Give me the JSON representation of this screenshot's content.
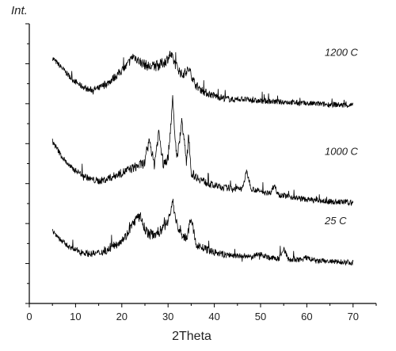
{
  "chart_data": {
    "type": "line",
    "title": "",
    "xlabel": "2Theta",
    "ylabel": "Int.",
    "xlim": [
      0,
      75
    ],
    "ylim": [
      0,
      35
    ],
    "x_ticks": [
      0,
      10,
      20,
      30,
      40,
      50,
      60,
      70
    ],
    "y_ticks_shown": false,
    "grid": false,
    "legend": "none",
    "colors": {
      "line": "#000000",
      "axis": "#000000",
      "text": "#222222"
    },
    "series": [
      {
        "name": "1200 C",
        "x": [
          5,
          7,
          9,
          11,
          13,
          15,
          17,
          19,
          21,
          22.5,
          24,
          26,
          28,
          29.5,
          30.5,
          31.5,
          33,
          34.5,
          36,
          38,
          40,
          42,
          44,
          46,
          48,
          50,
          52,
          54,
          56,
          58,
          60,
          62,
          64,
          66,
          68,
          70
        ],
        "y": [
          30.7,
          29.5,
          28.2,
          27.3,
          26.7,
          26.9,
          27.6,
          28.6,
          29.7,
          31.0,
          30.2,
          29.6,
          29.8,
          30.3,
          31.2,
          30.0,
          28.6,
          29.3,
          27.3,
          26.4,
          26.0,
          25.7,
          25.5,
          25.6,
          25.4,
          25.3,
          25.3,
          25.2,
          25.2,
          25.1,
          25.0,
          25.0,
          24.9,
          24.9,
          24.8,
          24.8
        ]
      },
      {
        "name": "1000 C",
        "x": [
          5,
          7,
          9,
          11,
          13,
          15,
          17,
          19,
          21,
          23,
          25,
          26,
          27,
          28,
          29,
          30,
          31,
          31.5,
          32,
          33,
          34,
          34.5,
          35,
          36,
          38,
          40,
          42,
          44,
          46,
          47,
          48,
          50,
          52,
          53,
          54,
          56,
          58,
          60,
          62,
          64,
          66,
          68,
          70
        ],
        "y": [
          20.3,
          18.4,
          17.0,
          16.3,
          15.6,
          15.3,
          15.6,
          16.1,
          16.6,
          17.1,
          17.6,
          20.5,
          17.3,
          21.5,
          17.3,
          18.2,
          25.5,
          20.5,
          18.2,
          23.0,
          17.5,
          21.0,
          16.3,
          15.9,
          15.2,
          14.7,
          14.5,
          14.4,
          14.3,
          16.5,
          14.4,
          14.0,
          13.8,
          14.8,
          13.6,
          13.4,
          13.2,
          13.0,
          12.9,
          12.8,
          12.7,
          12.7,
          12.6
        ]
      },
      {
        "name": "25 C",
        "x": [
          5,
          7,
          9,
          11,
          13,
          15,
          17,
          19,
          21,
          22,
          23,
          24,
          25,
          26,
          28,
          29,
          30,
          31,
          32,
          33,
          34,
          35,
          36,
          38,
          40,
          42,
          44,
          46,
          48,
          50,
          52,
          54,
          55,
          56,
          58,
          60,
          62,
          64,
          66,
          68,
          70
        ],
        "y": [
          9.1,
          7.8,
          6.9,
          6.5,
          6.2,
          6.3,
          6.7,
          7.5,
          8.5,
          9.6,
          10.5,
          10.9,
          9.3,
          8.6,
          8.9,
          9.6,
          10.2,
          12.8,
          9.6,
          8.6,
          8.0,
          10.8,
          7.4,
          6.8,
          6.4,
          6.1,
          6.0,
          5.9,
          5.8,
          6.2,
          5.7,
          5.6,
          6.9,
          5.5,
          5.4,
          5.7,
          5.3,
          5.3,
          5.2,
          5.2,
          5.1
        ]
      }
    ]
  }
}
